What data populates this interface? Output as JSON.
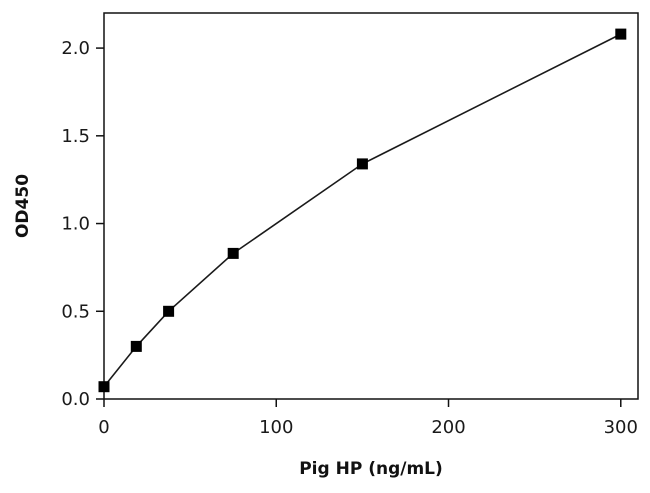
{
  "chart_data": {
    "type": "line",
    "xlabel": "Pig HP (ng/mL)",
    "ylabel": "OD450",
    "x": [
      0,
      18.75,
      37.5,
      75,
      150,
      300
    ],
    "series": [
      {
        "values": [
          0.07,
          0.3,
          0.5,
          0.83,
          1.34,
          2.08
        ]
      }
    ],
    "xlim": [
      0,
      310
    ],
    "ylim": [
      0,
      2.2
    ],
    "xticks": [
      0,
      100,
      200,
      300
    ],
    "yticks": [
      0.0,
      0.5,
      1.0,
      1.5,
      2.0
    ],
    "xtick_labels": [
      "0",
      "100",
      "200",
      "300"
    ],
    "ytick_labels": [
      "0.0",
      "0.5",
      "1.0",
      "1.5",
      "2.0"
    ],
    "grid": false,
    "marker": "square",
    "line_color": "#1a1a1a",
    "marker_color": "#000000"
  }
}
